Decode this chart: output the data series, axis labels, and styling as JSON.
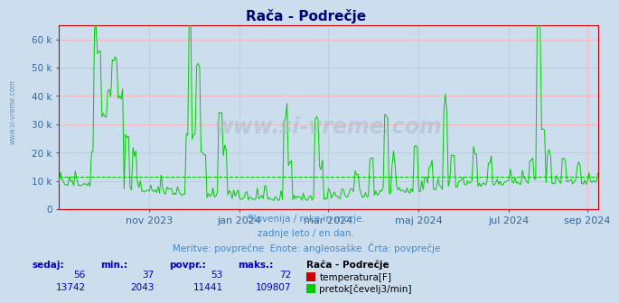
{
  "title": "Rača - Podrečje",
  "background_color": "#ccdded",
  "plot_bg_color": "#ccdded",
  "fig_bg_color": "#ccdded",
  "ylim": [
    0,
    65000
  ],
  "yticks": [
    0,
    10000,
    20000,
    30000,
    40000,
    50000,
    60000
  ],
  "ytick_labels": [
    "0",
    "10 k",
    "20 k",
    "30 k",
    "40 k",
    "50 k",
    "60 k"
  ],
  "grid_color": "#ffaaaa",
  "avg_line_value": 11441,
  "avg_line_color": "#00cc00",
  "avg_line_style": "dashed",
  "temperature_color": "#cc0000",
  "flow_color": "#00cc00",
  "temp_avg": 53,
  "temp_min": 37,
  "temp_max": 72,
  "temp_current": 56,
  "flow_avg": 11441,
  "flow_min": 2043,
  "flow_max": 109807,
  "flow_current": 13742,
  "subtitle1": "Slovenija / reke in morje.",
  "subtitle2": "zadnje leto / en dan.",
  "subtitle3": "Meritve: povprečne  Enote: angleosaške  Črta: povprečje",
  "legend_title": "Rača - Podrečje",
  "legend_temp_label": "temperatura[F]",
  "legend_flow_label": "pretok[čevelj3/min]",
  "col_headers": [
    "sedaj:",
    "min.:",
    "povpr.:",
    "maks.:"
  ],
  "watermark": "www.si-vreme.com",
  "x_tick_labels": [
    "nov 2023",
    "jan 2024",
    "mar 2024",
    "maj 2024",
    "jul 2024",
    "sep 2024"
  ],
  "x_tick_positions": [
    61,
    122,
    182,
    243,
    304,
    357
  ],
  "axis_color": "#cc0000",
  "title_color": "#000080",
  "subtitle_color": "#4488cc",
  "table_header_color": "#0000cc",
  "table_value_color": "#0000cc",
  "left_label_color": "#4488cc"
}
